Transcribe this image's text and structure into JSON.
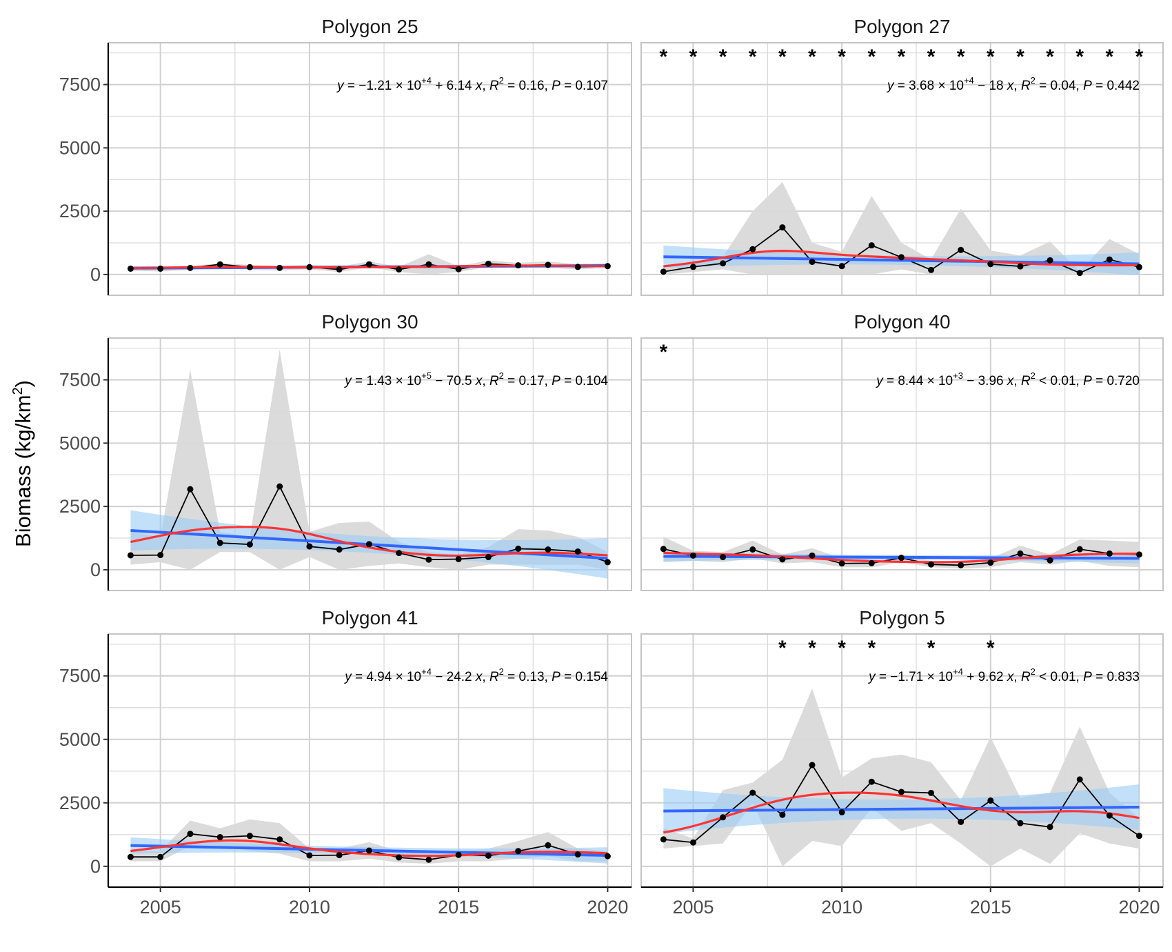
{
  "chart_data": {
    "type": "line",
    "layout": "facet-grid 3 rows x 2 columns",
    "ylabel": "Biomass (kg/km",
    "ylabel_sup": "2",
    "ylabel_close": ")",
    "xlim": [
      2003.25,
      2020.8
    ],
    "ylim": [
      -820,
      9150
    ],
    "xticks": [
      2005,
      2010,
      2015,
      2020
    ],
    "xtick_labels": [
      "2005",
      "2010",
      "2015",
      "2020"
    ],
    "yticks": [
      0,
      2500,
      5000,
      7500
    ],
    "ytick_labels": [
      "0",
      "2500",
      "5000",
      "7500"
    ],
    "grid": true,
    "colors": {
      "observed": "#000000",
      "ribbon": "#d9d9d9",
      "lm_line": "#3366ff",
      "lm_ci": "#99ccf5",
      "loess": "#ff3333"
    },
    "x": [
      2004,
      2005,
      2006,
      2007,
      2008,
      2009,
      2010,
      2011,
      2012,
      2013,
      2014,
      2015,
      2016,
      2017,
      2018,
      2019,
      2020
    ],
    "panels": [
      {
        "title": "Polygon 25",
        "values": [
          230,
          230,
          260,
          400,
          290,
          260,
          290,
          200,
          400,
          200,
          400,
          210,
          420,
          360,
          380,
          300,
          330
        ],
        "upper": [
          300,
          320,
          330,
          450,
          380,
          340,
          380,
          300,
          520,
          300,
          800,
          320,
          560,
          460,
          520,
          400,
          420
        ],
        "lower": [
          150,
          120,
          180,
          300,
          180,
          160,
          200,
          100,
          280,
          100,
          0,
          100,
          300,
          260,
          260,
          200,
          250
        ],
        "lm_fit": [
          250,
          350
        ],
        "lm_ci_halfwidth": [
          90,
          40,
          90
        ],
        "eq": {
          "a": "−1.21",
          "exp": "+4",
          "slope": "+ 6.14",
          "r2": "= 0.16",
          "p": "0.107"
        },
        "asterisks": []
      },
      {
        "title": "Polygon 27",
        "values": [
          110,
          300,
          440,
          1000,
          1860,
          500,
          330,
          1150,
          680,
          180,
          970,
          410,
          320,
          560,
          60,
          590,
          290
        ],
        "upper": [
          300,
          420,
          700,
          2500,
          3650,
          1250,
          900,
          3100,
          1250,
          600,
          2600,
          950,
          750,
          1300,
          120,
          1400,
          800
        ],
        "lower": [
          0,
          100,
          200,
          0,
          0,
          0,
          0,
          0,
          200,
          0,
          0,
          0,
          0,
          0,
          0,
          0,
          0
        ],
        "lm_fit": [
          700,
          420
        ],
        "lm_ci_halfwidth": [
          450,
          180,
          450
        ],
        "eq": {
          "a": "3.68",
          "exp": "+4",
          "slope": "− 18",
          "r2": "= 0.04",
          "p": "0.442"
        },
        "asterisks": [
          2004,
          2005,
          2006,
          2007,
          2008,
          2009,
          2010,
          2011,
          2012,
          2013,
          2014,
          2015,
          2016,
          2017,
          2018,
          2019,
          2020
        ]
      },
      {
        "title": "Polygon 30",
        "values": [
          570,
          580,
          3180,
          1060,
          1000,
          3290,
          920,
          800,
          1010,
          660,
          400,
          420,
          500,
          830,
          800,
          720,
          300
        ],
        "upper": [
          1500,
          1300,
          7900,
          1500,
          1300,
          8700,
          1500,
          1850,
          1900,
          1100,
          700,
          600,
          900,
          1600,
          1550,
          1300,
          700
        ],
        "lower": [
          200,
          300,
          0,
          700,
          700,
          0,
          500,
          0,
          150,
          250,
          100,
          0,
          200,
          200,
          200,
          200,
          0
        ],
        "lm_fit": [
          1550,
          450
        ],
        "lm_ci_halfwidth": [
          800,
          330,
          800
        ],
        "eq": {
          "a": "1.43",
          "exp": "+5",
          "slope": "− 70.5",
          "r2": "= 0.17",
          "p": "0.104"
        },
        "asterisks": []
      },
      {
        "title": "Polygon 40",
        "values": [
          820,
          560,
          500,
          800,
          410,
          560,
          250,
          260,
          470,
          210,
          180,
          280,
          640,
          370,
          810,
          640,
          600
        ],
        "upper": [
          1300,
          750,
          700,
          1150,
          600,
          850,
          450,
          450,
          600,
          350,
          350,
          450,
          950,
          600,
          1200,
          1150,
          1100
        ],
        "lower": [
          300,
          350,
          300,
          450,
          250,
          300,
          100,
          100,
          300,
          100,
          50,
          100,
          300,
          200,
          350,
          150,
          100
        ],
        "lm_fit": [
          530,
          450
        ],
        "lm_ci_halfwidth": [
          200,
          90,
          200
        ],
        "eq": {
          "a": "8.44",
          "exp": "+3",
          "slope": "− 3.96",
          "r2": "< 0.01",
          "p": "0.720"
        },
        "asterisks": [
          2004
        ]
      },
      {
        "title": "Polygon 41",
        "values": [
          370,
          370,
          1280,
          1150,
          1200,
          1060,
          430,
          440,
          620,
          350,
          260,
          450,
          420,
          600,
          830,
          470,
          400
        ],
        "upper": [
          600,
          600,
          1800,
          1500,
          1850,
          1700,
          700,
          700,
          950,
          600,
          500,
          600,
          700,
          1000,
          1350,
          700,
          600
        ],
        "lower": [
          200,
          200,
          800,
          800,
          600,
          500,
          200,
          200,
          300,
          150,
          100,
          200,
          200,
          300,
          400,
          200,
          200
        ],
        "lm_fit": [
          820,
          430
        ],
        "lm_ci_halfwidth": [
          320,
          130,
          320
        ],
        "eq": {
          "a": "4.94",
          "exp": "+4",
          "slope": "− 24.2",
          "r2": "= 0.13",
          "p": "0.154"
        },
        "asterisks": []
      },
      {
        "title": "Polygon 5",
        "values": [
          1060,
          940,
          1930,
          2900,
          2030,
          3990,
          2130,
          3330,
          2930,
          2890,
          1750,
          2590,
          1700,
          1550,
          3420,
          2000,
          1200
        ],
        "upper": [
          1500,
          1100,
          3000,
          3300,
          4200,
          7000,
          3500,
          4250,
          4400,
          4100,
          2600,
          5100,
          2700,
          2900,
          5500,
          2900,
          1900
        ],
        "lower": [
          700,
          800,
          900,
          2500,
          0,
          1000,
          800,
          2300,
          1400,
          1700,
          900,
          0,
          700,
          100,
          1300,
          900,
          700
        ],
        "lm_fit": [
          2180,
          2330
        ],
        "lm_ci_halfwidth": [
          900,
          380,
          900
        ],
        "eq": {
          "a": "−1.71",
          "exp": "+4",
          "slope": "+ 9.62",
          "r2": "< 0.01",
          "p": "0.833"
        },
        "asterisks": [
          2008,
          2009,
          2010,
          2011,
          2013,
          2015
        ]
      }
    ]
  }
}
